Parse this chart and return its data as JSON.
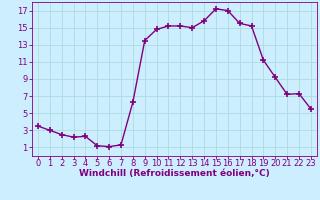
{
  "x": [
    0,
    1,
    2,
    3,
    4,
    5,
    6,
    7,
    8,
    9,
    10,
    11,
    12,
    13,
    14,
    15,
    16,
    17,
    18,
    19,
    20,
    21,
    22,
    23
  ],
  "y": [
    3.5,
    3.0,
    2.5,
    2.2,
    2.3,
    1.2,
    1.1,
    1.3,
    6.3,
    13.5,
    14.8,
    15.2,
    15.2,
    15.0,
    15.8,
    17.2,
    17.0,
    15.5,
    15.2,
    11.2,
    9.2,
    7.2,
    7.3,
    5.5
  ],
  "line_color": "#800080",
  "marker": "+",
  "marker_size": 4,
  "marker_linewidth": 1.2,
  "line_width": 1.0,
  "background_color": "#cceeff",
  "grid_color": "#aadddd",
  "xlabel": "Windchill (Refroidissement éolien,°C)",
  "xlabel_color": "#800080",
  "xlabel_fontsize": 6.5,
  "tick_color": "#800080",
  "tick_fontsize": 6,
  "xlim": [
    -0.5,
    23.5
  ],
  "ylim": [
    0,
    18
  ],
  "yticks": [
    1,
    3,
    5,
    7,
    9,
    11,
    13,
    15,
    17
  ],
  "xticks": [
    0,
    1,
    2,
    3,
    4,
    5,
    6,
    7,
    8,
    9,
    10,
    11,
    12,
    13,
    14,
    15,
    16,
    17,
    18,
    19,
    20,
    21,
    22,
    23
  ]
}
